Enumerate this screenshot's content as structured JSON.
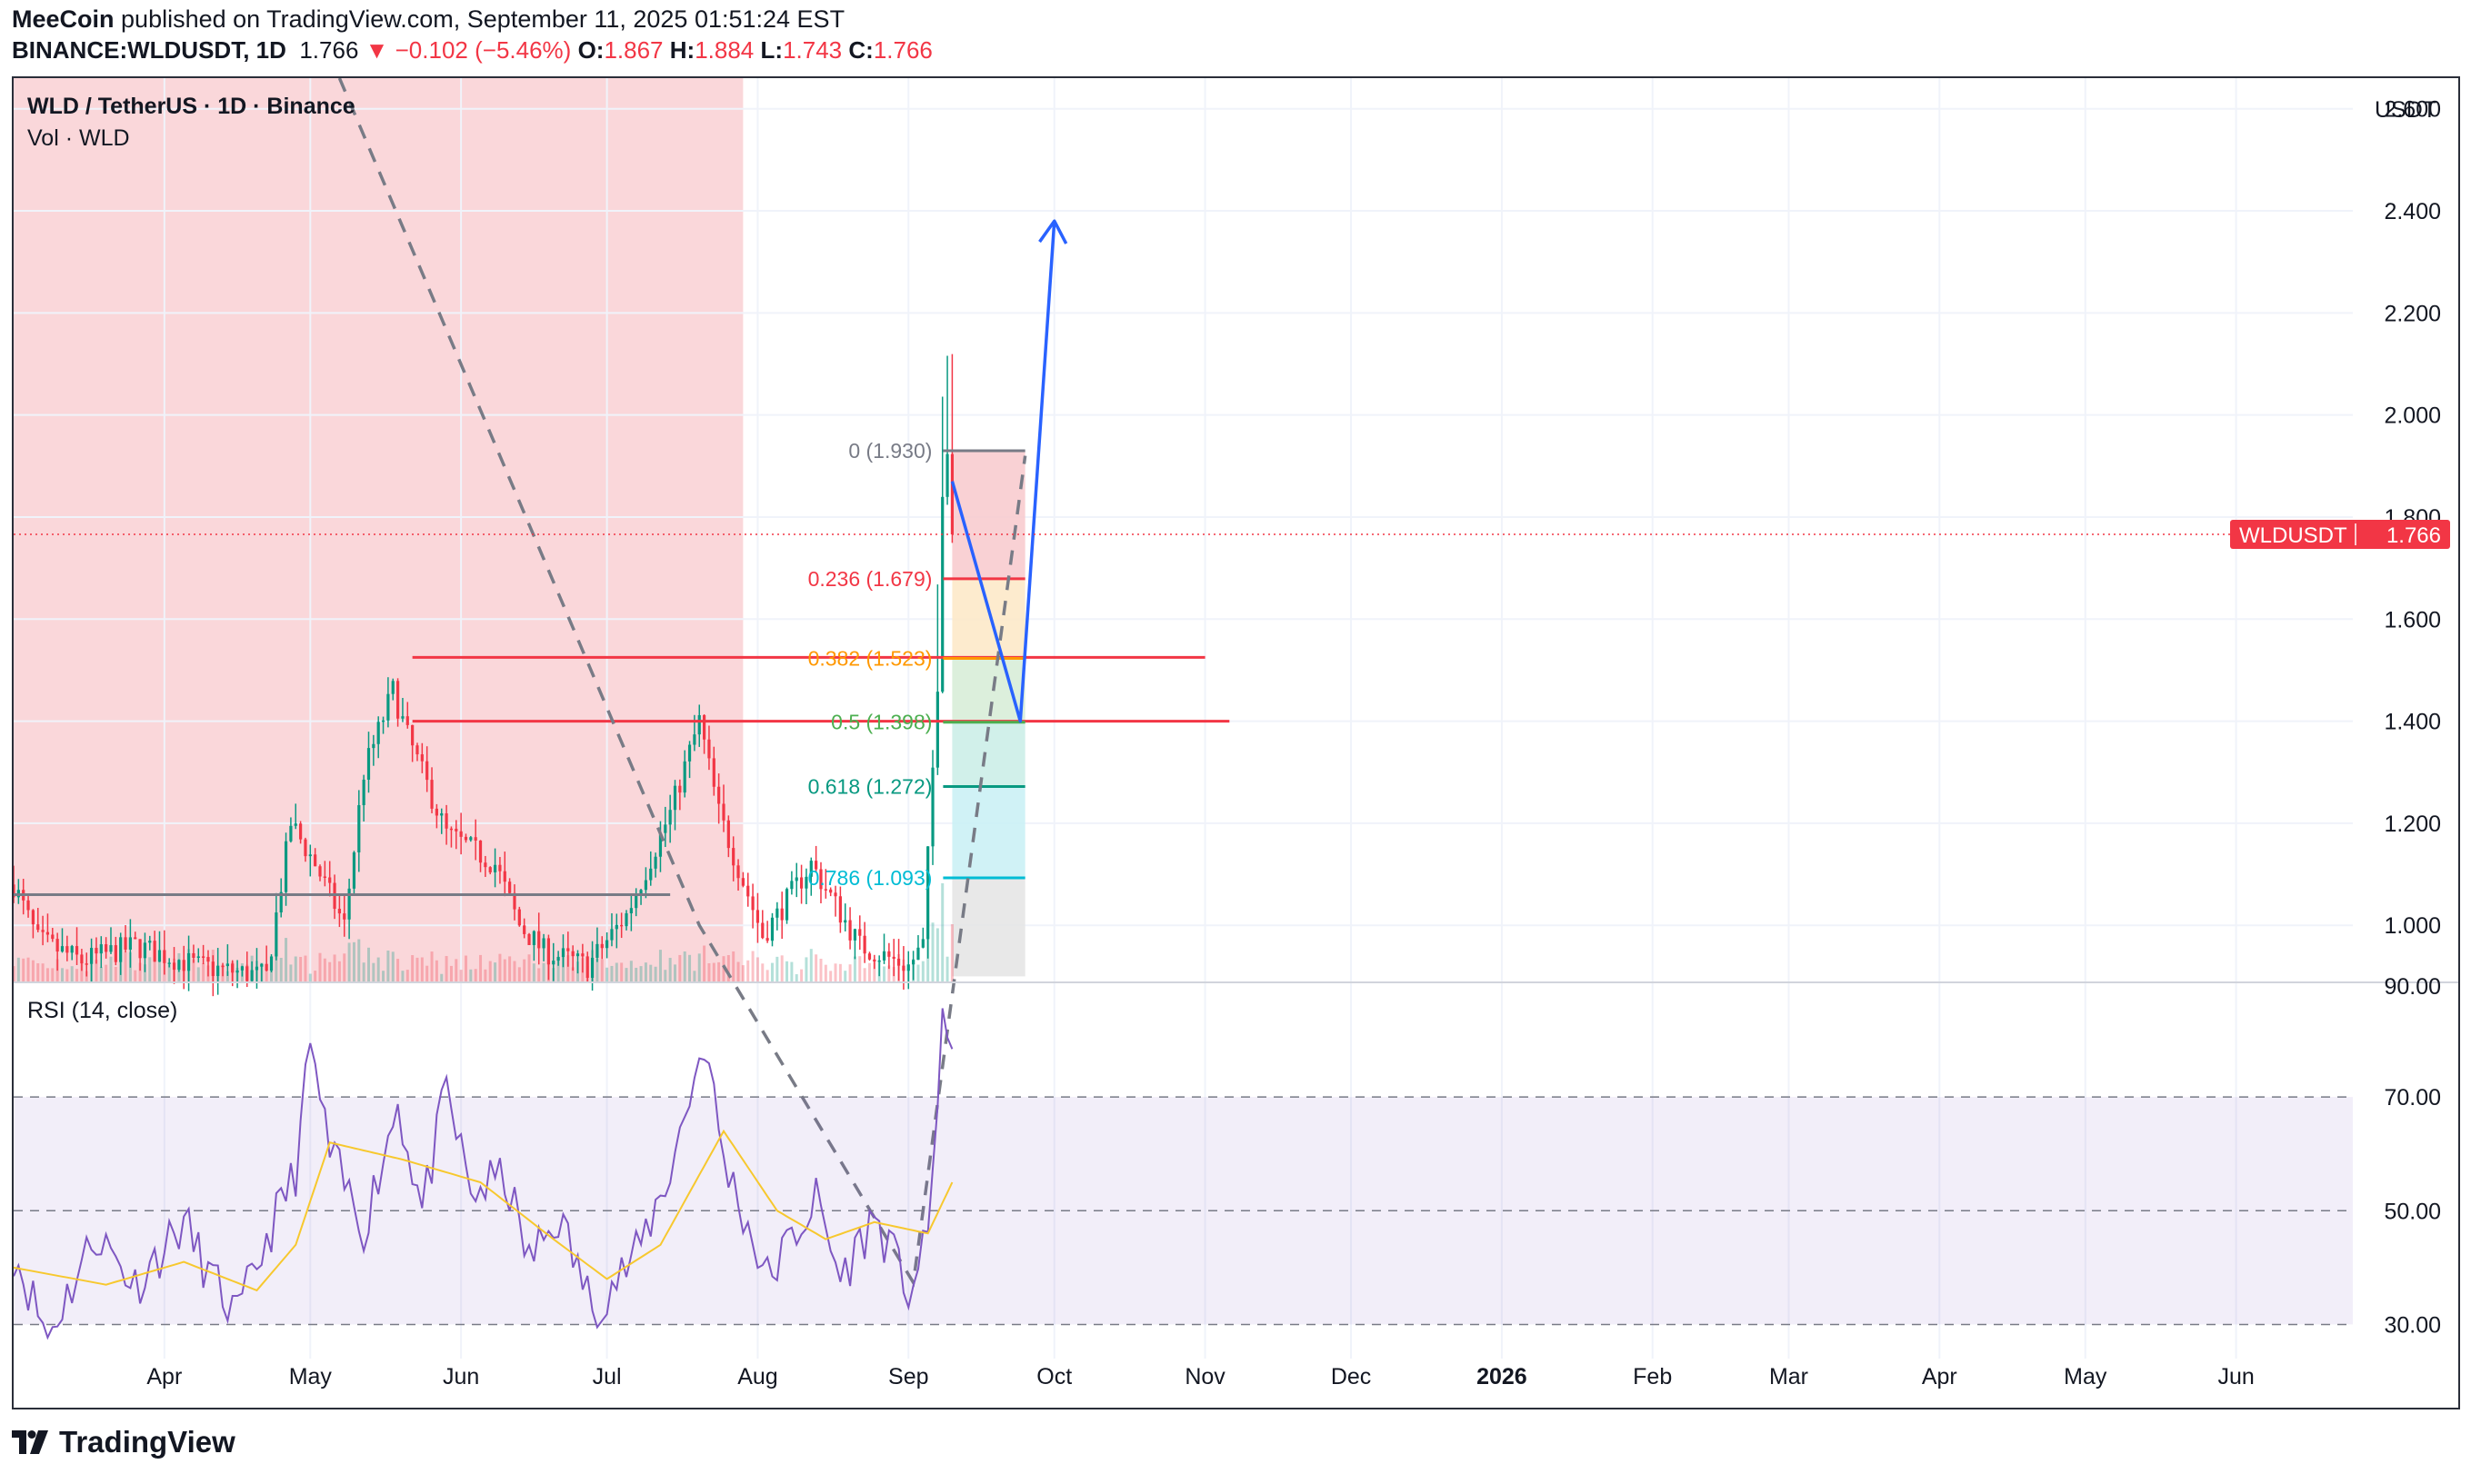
{
  "header": {
    "author": "MeeCoin",
    "published": "published on TradingView.com, September 11, 2025 01:51:24 EST",
    "symbol": "BINANCE:WLDUSDT, 1D",
    "last": "1.766",
    "change": "−0.102 (−5.46%)",
    "o_label": "O:",
    "o": "1.867",
    "h_label": "H:",
    "h": "1.884",
    "l_label": "L:",
    "l": "1.743",
    "c_label": "C:",
    "c": "1.766"
  },
  "legend": {
    "title": "WLD / TetherUS · 1D · Binance",
    "volume": "Vol · WLD",
    "rsi": "RSI (14, close)"
  },
  "brand": "TradingView",
  "colors": {
    "up": "#089981",
    "down": "#f23645",
    "shade": "#f8c9cd",
    "rsi_line": "#7e57c2",
    "rsi_ma": "#f7c82e",
    "arrow": "#2962ff"
  },
  "chart_data": {
    "type": "candlestick",
    "unit": "USDT",
    "price_axis_ticks": [
      "2.600",
      "2.400",
      "2.200",
      "2.000",
      "1.800",
      "1.600",
      "1.400",
      "1.200",
      "1.000",
      "90.00"
    ],
    "rsi_axis_ticks": [
      "70.00",
      "50.00",
      "30.00"
    ],
    "time_axis": [
      "Apr",
      "May",
      "Jun",
      "Jul",
      "Aug",
      "Sep",
      "Oct",
      "Nov",
      "Dec",
      "2026",
      "Feb",
      "Mar",
      "Apr",
      "May",
      "Jun"
    ],
    "price_ylim": [
      0.89,
      2.66
    ],
    "rsi_ylim": [
      24,
      90
    ],
    "x_domain": [
      "2025-03-01",
      "2026-06-25"
    ],
    "last_price": {
      "symbol": "WLDUSDT",
      "value": 1.766
    },
    "price_anchors": [
      [
        "2025-03-01",
        1.08
      ],
      [
        "2025-03-06",
        0.97
      ],
      [
        "2025-03-15",
        0.93
      ],
      [
        "2025-03-26",
        0.96
      ],
      [
        "2025-04-08",
        0.92
      ],
      [
        "2025-04-22",
        0.9
      ],
      [
        "2025-04-27",
        1.2
      ],
      [
        "2025-05-02",
        1.12
      ],
      [
        "2025-05-08",
        1.0
      ],
      [
        "2025-05-12",
        1.3
      ],
      [
        "2025-05-18",
        1.46
      ],
      [
        "2025-05-21",
        1.37
      ],
      [
        "2025-05-29",
        1.18
      ],
      [
        "2025-06-08",
        1.12
      ],
      [
        "2025-06-13",
        1.0
      ],
      [
        "2025-06-18",
        0.95
      ],
      [
        "2025-06-27",
        0.92
      ],
      [
        "2025-07-05",
        1.02
      ],
      [
        "2025-07-14",
        1.22
      ],
      [
        "2025-07-20",
        1.4
      ],
      [
        "2025-07-24",
        1.22
      ],
      [
        "2025-08-02",
        0.98
      ],
      [
        "2025-08-05",
        1.02
      ],
      [
        "2025-08-12",
        1.12
      ],
      [
        "2025-08-22",
        0.96
      ],
      [
        "2025-09-01",
        0.92
      ],
      [
        "2025-09-04",
        0.96
      ],
      [
        "2025-09-07",
        1.48
      ],
      [
        "2025-09-08",
        1.86
      ],
      [
        "2025-09-09",
        1.93
      ],
      [
        "2025-09-10",
        1.767
      ]
    ],
    "rsi_anchors": [
      [
        "2025-03-01",
        43
      ],
      [
        "2025-03-08",
        28
      ],
      [
        "2025-03-18",
        46
      ],
      [
        "2025-03-26",
        37
      ],
      [
        "2025-04-05",
        48
      ],
      [
        "2025-04-10",
        39
      ],
      [
        "2025-04-16",
        31
      ],
      [
        "2025-04-22",
        45
      ],
      [
        "2025-04-28",
        57
      ],
      [
        "2025-05-01",
        79
      ],
      [
        "2025-05-05",
        60
      ],
      [
        "2025-05-12",
        47
      ],
      [
        "2025-05-19",
        69
      ],
      [
        "2025-05-24",
        50
      ],
      [
        "2025-05-29",
        71
      ],
      [
        "2025-06-03",
        53
      ],
      [
        "2025-06-10",
        56
      ],
      [
        "2025-06-15",
        41
      ],
      [
        "2025-06-21",
        49
      ],
      [
        "2025-06-28",
        33
      ],
      [
        "2025-07-07",
        42
      ],
      [
        "2025-07-14",
        57
      ],
      [
        "2025-07-21",
        80
      ],
      [
        "2025-07-25",
        59
      ],
      [
        "2025-08-03",
        38
      ],
      [
        "2025-08-08",
        45
      ],
      [
        "2025-08-13",
        52
      ],
      [
        "2025-08-18",
        38
      ],
      [
        "2025-08-25",
        49
      ],
      [
        "2025-09-01",
        36
      ],
      [
        "2025-09-05",
        44
      ],
      [
        "2025-09-08",
        85
      ],
      [
        "2025-09-10",
        74
      ]
    ],
    "rsi_ma_anchors": [
      [
        "2025-03-01",
        40
      ],
      [
        "2025-03-20",
        37
      ],
      [
        "2025-04-05",
        41
      ],
      [
        "2025-04-20",
        36
      ],
      [
        "2025-04-28",
        44
      ],
      [
        "2025-05-05",
        62
      ],
      [
        "2025-05-20",
        59
      ],
      [
        "2025-06-05",
        55
      ],
      [
        "2025-06-20",
        45
      ],
      [
        "2025-07-01",
        38
      ],
      [
        "2025-07-12",
        44
      ],
      [
        "2025-07-25",
        64
      ],
      [
        "2025-08-05",
        50
      ],
      [
        "2025-08-15",
        45
      ],
      [
        "2025-08-25",
        48
      ],
      [
        "2025-09-05",
        46
      ],
      [
        "2025-09-10",
        55
      ]
    ],
    "shaded_range": {
      "from": "2025-03-01",
      "to": "2025-07-29"
    },
    "fibonacci": [
      {
        "label": "0 (1.930)",
        "price": 1.93,
        "color": "#787b86"
      },
      {
        "label": "0.236 (1.679)",
        "price": 1.679,
        "color": "#f23645"
      },
      {
        "label": "0.382 (1.523)",
        "price": 1.523,
        "color": "#ff9800"
      },
      {
        "label": "0.5 (1.398)",
        "price": 1.398,
        "color": "#4caf50"
      },
      {
        "label": "0.618 (1.272)",
        "price": 1.272,
        "color": "#089981"
      },
      {
        "label": "0.786 (1.093)",
        "price": 1.093,
        "color": "#00bcd4"
      }
    ],
    "fib_from": "2025-09-10",
    "fib_to": "2025-09-25",
    "fib_bottom": 0.9,
    "support_line": {
      "price": 1.06,
      "from": "2025-03-01",
      "to": "2025-07-14"
    },
    "resistance_lines": [
      {
        "price": 1.525,
        "from": "2025-05-22",
        "to": "2025-11-01"
      },
      {
        "price": 1.4,
        "from": "2025-05-22",
        "to": "2025-11-06"
      }
    ],
    "dashed_projection": [
      [
        "2025-05-07",
        2.66
      ],
      [
        "2025-07-20",
        1.0
      ],
      [
        "2025-09-02",
        0.3
      ],
      [
        "2025-09-25",
        1.92
      ]
    ],
    "forecast_path": [
      [
        "2025-09-10",
        1.87
      ],
      [
        "2025-09-24",
        1.4
      ],
      [
        "2025-10-01",
        2.38
      ]
    ]
  }
}
